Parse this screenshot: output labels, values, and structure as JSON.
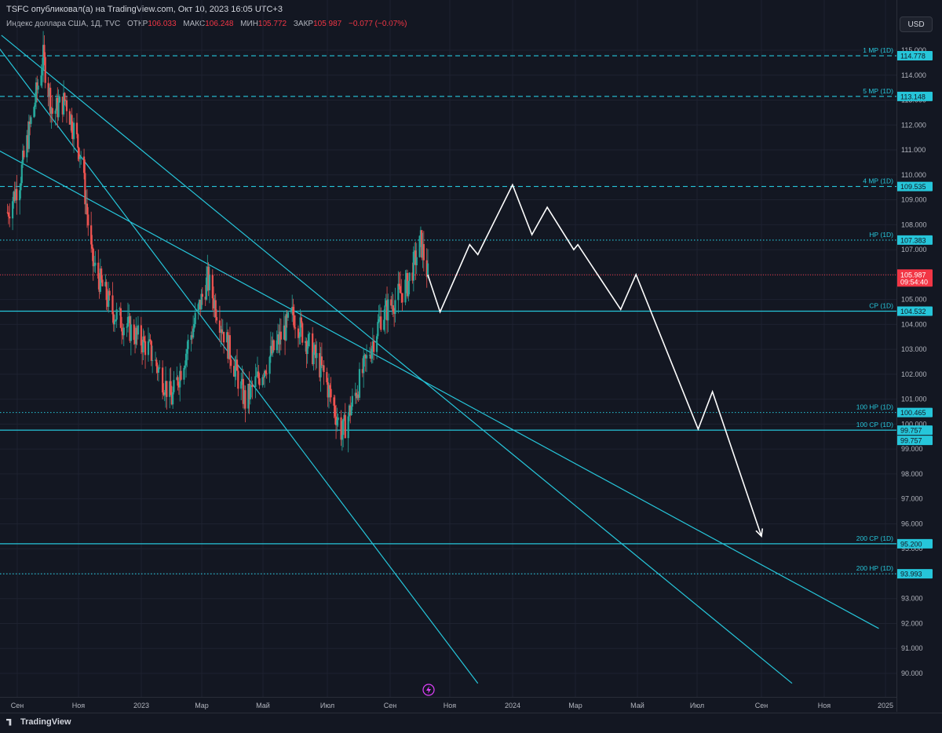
{
  "header": {
    "published": "TSFC опубликовал(а) на TradingView.com, Окт 10, 2023 16:05 UTC+3"
  },
  "ohlc": {
    "symbol": "Индекс доллара США, 1Д, TVC",
    "open_label": "ОТКР",
    "open": "106.033",
    "high_label": "МАКС",
    "high": "106.248",
    "low_label": "МИН",
    "low": "105.772",
    "close_label": "ЗАКР",
    "close": "105.987",
    "change": "−0.077 (−0.07%)"
  },
  "currency": "USD",
  "footer": {
    "brand": "TradingView"
  },
  "colors": {
    "background": "#131722",
    "level": "#26c6da",
    "up": "#26a69a",
    "down": "#ef5350",
    "projection": "#ffffff",
    "last_price": "#f23645"
  },
  "chart_data": {
    "type": "candlestick",
    "title": "Индекс доллара США, 1Д, TVC",
    "ylim": [
      89.5,
      115.6
    ],
    "y_ticks": [
      90,
      91,
      92,
      93,
      94,
      95,
      96,
      97,
      98,
      99,
      100,
      101,
      102,
      103,
      104,
      105,
      106,
      107,
      108,
      109,
      110,
      111,
      112,
      113,
      114,
      115
    ],
    "x_ticks": [
      "Сен",
      "Ноя",
      "2023",
      "Мар",
      "Май",
      "Июл",
      "Сен",
      "Ноя",
      "2024",
      "Мар",
      "Май",
      "Июл",
      "Сен",
      "Ноя",
      "2025"
    ],
    "price_path": [
      [
        "2022-08-24",
        108.5
      ],
      [
        "2022-09-05",
        109.8
      ],
      [
        "2022-09-28",
        114.7
      ],
      [
        "2022-10-07",
        112.5
      ],
      [
        "2022-10-20",
        113.0
      ],
      [
        "2022-11-04",
        110.8
      ],
      [
        "2022-11-15",
        106.5
      ],
      [
        "2022-12-05",
        104.5
      ],
      [
        "2023-01-10",
        103.0
      ],
      [
        "2023-02-01",
        101.0
      ],
      [
        "2023-03-08",
        105.8
      ],
      [
        "2023-04-14",
        100.9
      ],
      [
        "2023-05-31",
        104.4
      ],
      [
        "2023-06-30",
        102.0
      ],
      [
        "2023-07-18",
        99.6
      ],
      [
        "2023-08-25",
        104.3
      ],
      [
        "2023-09-20",
        105.6
      ],
      [
        "2023-10-03",
        107.3
      ],
      [
        "2023-10-10",
        105.987
      ]
    ],
    "projection": [
      [
        "2023-10-10",
        105.987
      ],
      [
        "2023-10-22",
        104.5
      ],
      [
        "2023-11-20",
        107.2
      ],
      [
        "2023-11-28",
        106.8
      ],
      [
        "2024-01-01",
        109.6
      ],
      [
        "2024-01-20",
        107.6
      ],
      [
        "2024-02-04",
        108.7
      ],
      [
        "2024-03-01",
        107.0
      ],
      [
        "2024-03-05",
        107.2
      ],
      [
        "2024-04-16",
        104.6
      ],
      [
        "2024-05-01",
        106.0
      ],
      [
        "2024-07-01",
        99.8
      ],
      [
        "2024-07-15",
        101.3
      ],
      [
        "2024-09-01",
        95.5
      ]
    ],
    "levels": [
      {
        "label": "1 МР (1D)",
        "value": 114.778,
        "style": "dashed"
      },
      {
        "label": "5 МР (1D)",
        "value": 113.148,
        "style": "dashed"
      },
      {
        "label": "4 МР (1D)",
        "value": 109.535,
        "style": "dashed"
      },
      {
        "label": "НР (1D)",
        "value": 107.383,
        "style": "dotted"
      },
      {
        "label": "СР (1D)",
        "value": 104.532,
        "style": "solid"
      },
      {
        "label": "100 НР (1D)",
        "value": 100.465,
        "style": "dotted"
      },
      {
        "label": "100 СР (1D)",
        "value": 99.757,
        "style": "solid"
      },
      {
        "label": "200 СР (1D)",
        "value": 95.2,
        "style": "solid"
      },
      {
        "label": "200 НР (1D)",
        "value": 93.993,
        "style": "dotted"
      }
    ],
    "trendlines": [
      {
        "from": [
          "2022-08-10",
          115.4
        ],
        "to": [
          "2023-11-28",
          89.6
        ]
      },
      {
        "from": [
          "2022-08-18",
          115.6
        ],
        "to": [
          "2024-10-01",
          89.6
        ]
      },
      {
        "from": [
          "2022-08-10",
          111.1
        ],
        "to": [
          "2024-12-25",
          91.8
        ]
      }
    ],
    "last_price": {
      "value": "105.987",
      "countdown": "09:54:40"
    },
    "extra_price_label": "99.757"
  }
}
